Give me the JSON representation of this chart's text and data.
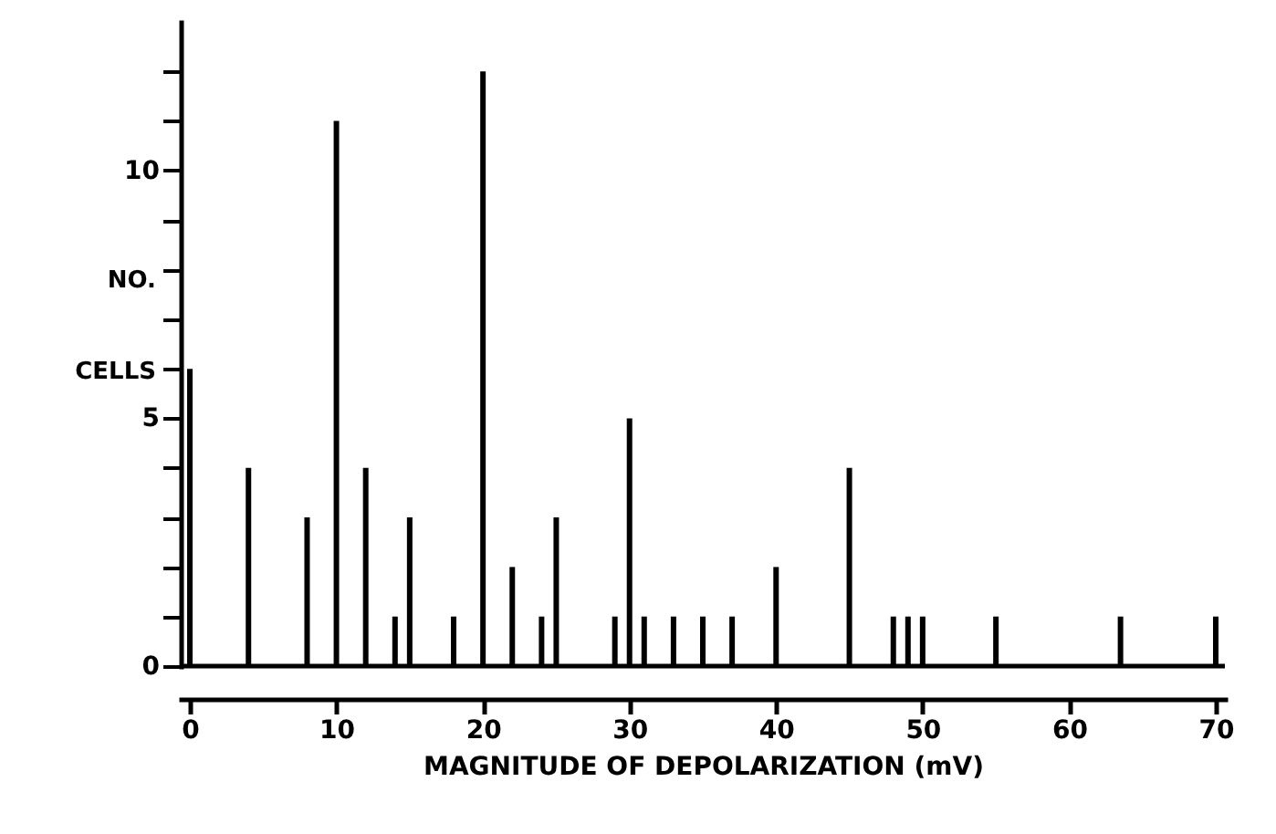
{
  "chart_data": {
    "type": "bar",
    "xlabel": "MAGNITUDE OF DEPOLARIZATION (mV)",
    "ylabel": "NO. CELLS",
    "x": [
      0,
      4,
      8,
      10,
      12,
      14,
      15,
      18,
      20,
      22,
      24,
      25,
      29,
      30,
      31,
      33,
      35,
      37,
      40,
      45,
      48,
      49,
      50,
      55,
      63.5,
      70
    ],
    "values": [
      6,
      4,
      3,
      11,
      4,
      1,
      3,
      1,
      12,
      2,
      1,
      3,
      1,
      5,
      1,
      1,
      1,
      1,
      2,
      4,
      1,
      1,
      1,
      1,
      1,
      1
    ],
    "color": "#000000",
    "xlim": [
      0,
      70
    ],
    "xticks": [
      0,
      10,
      20,
      30,
      40,
      50,
      60,
      70
    ],
    "ylim": [
      0,
      13
    ],
    "yticks": [
      0,
      {
        "value": 1,
        "label": null
      },
      {
        "value": 2,
        "label": null
      },
      {
        "value": 3,
        "label": null
      },
      {
        "value": 4,
        "label": null
      },
      5,
      {
        "value": 6,
        "label": null
      },
      {
        "value": 7,
        "label": null
      },
      {
        "value": 8,
        "label": null
      },
      {
        "value": 9,
        "label": null
      },
      10,
      {
        "value": 11,
        "label": null
      },
      {
        "value": 12,
        "label": null
      }
    ],
    "ref_lines": [
      {
        "axis": "y",
        "value": 0,
        "label": null,
        "color": "#000000"
      }
    ],
    "grid": false
  }
}
